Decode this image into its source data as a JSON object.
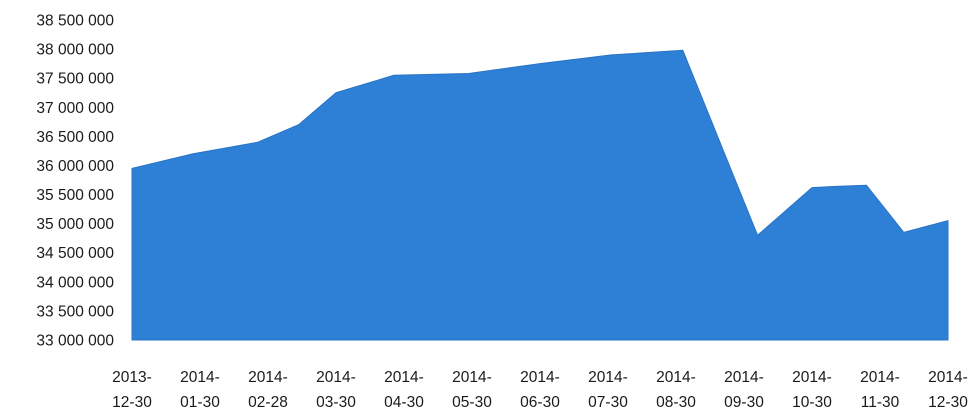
{
  "chart_data": {
    "type": "area",
    "title": "",
    "xlabel": "",
    "ylabel": "",
    "grid": false,
    "legend": "none",
    "color": "#2E7FD6",
    "categories": [
      "2013-12-30",
      "2014-01-30",
      "2014-02-28",
      "2014-03-30",
      "2014-04-30",
      "2014-05-30",
      "2014-06-30",
      "2014-07-30",
      "2014-08-30",
      "2014-09-30",
      "2014-10-30",
      "2014-11-30",
      "2014-12-30"
    ],
    "category_labels": [
      [
        "2013-",
        "12-30"
      ],
      [
        "2014-",
        "01-30"
      ],
      [
        "2014-",
        "02-28"
      ],
      [
        "2014-",
        "03-30"
      ],
      [
        "2014-",
        "04-30"
      ],
      [
        "2014-",
        "05-30"
      ],
      [
        "2014-",
        "06-30"
      ],
      [
        "2014-",
        "07-30"
      ],
      [
        "2014-",
        "08-30"
      ],
      [
        "2014-",
        "09-30"
      ],
      [
        "2014-",
        "10-30"
      ],
      [
        "2014-",
        "11-30"
      ],
      [
        "2014-",
        "12-30"
      ]
    ],
    "x": [
      0,
      0.9,
      1.85,
      2.45,
      3.0,
      3.85,
      4.95,
      6.0,
      7.05,
      8.1,
      9.2,
      10.0,
      10.35,
      10.8,
      11.35,
      12.0
    ],
    "values": [
      35950000,
      36200000,
      36400000,
      36700000,
      37250000,
      37550000,
      37580000,
      37750000,
      37900000,
      37980000,
      34800000,
      35620000,
      35640000,
      35660000,
      34850000,
      35050000
    ],
    "ylim": [
      33000000,
      38500000
    ],
    "yticks": [
      33000000,
      33500000,
      34000000,
      34500000,
      35000000,
      35500000,
      36000000,
      36500000,
      37000000,
      37500000,
      38000000,
      38500000
    ],
    "ytick_labels": [
      "33 000 000",
      "33 500 000",
      "34 000 000",
      "34 500 000",
      "35 000 000",
      "35 500 000",
      "36 000 000",
      "36 500 000",
      "37 000 000",
      "37 500 000",
      "38 000 000",
      "38 500 000"
    ]
  }
}
